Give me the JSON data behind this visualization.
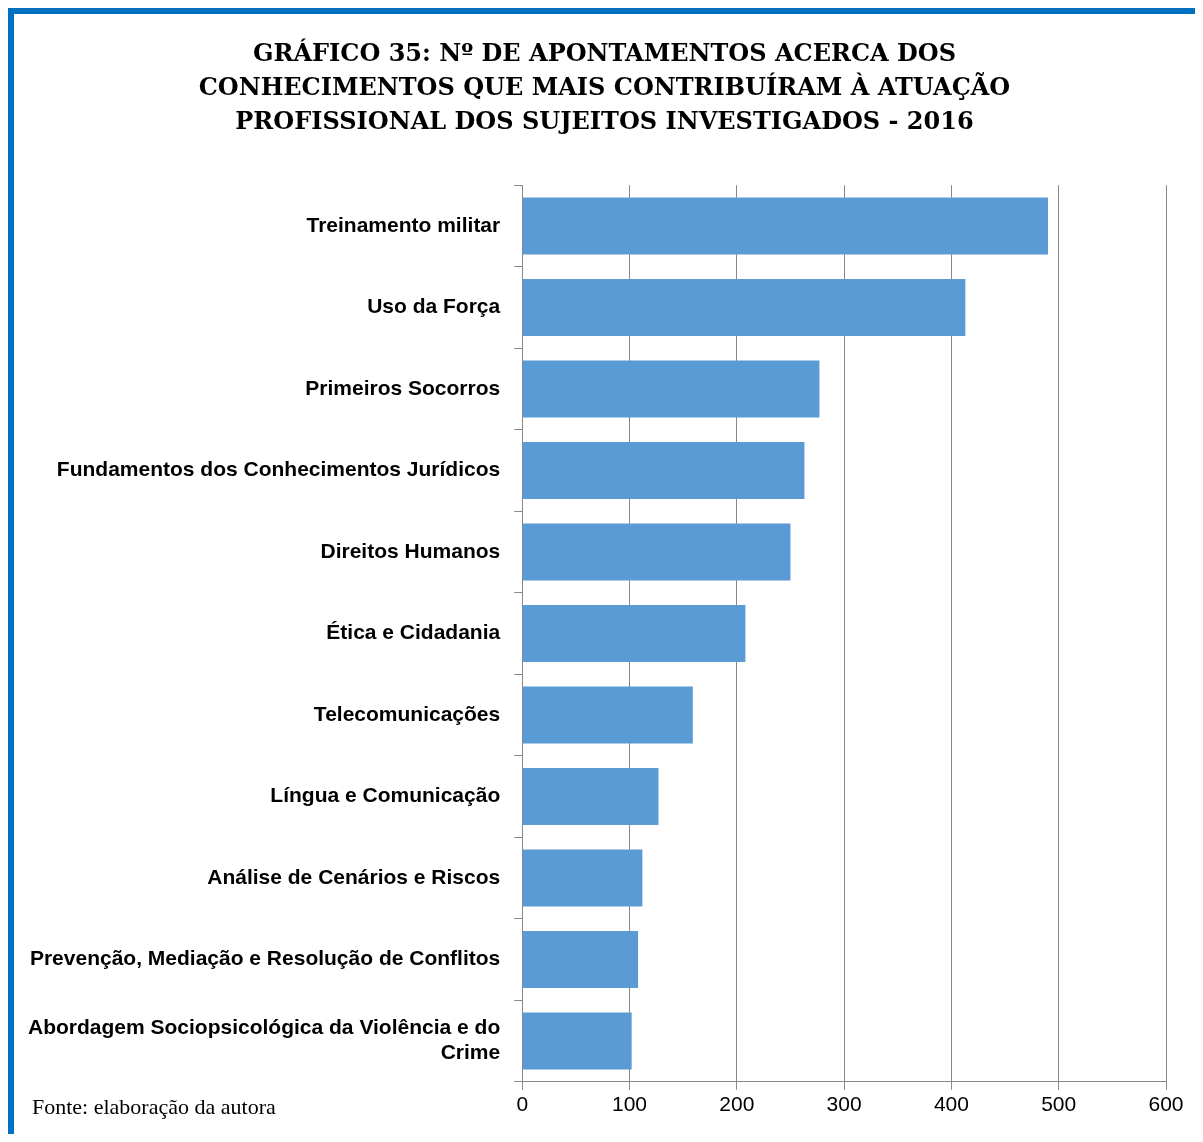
{
  "chart_data": {
    "type": "bar",
    "orientation": "horizontal",
    "title": "GRÁFICO 35: Nº DE APONTAMENTOS ACERCA DOS CONHECIMENTOS QUE MAIS CONTRIBUÍRAM À ATUAÇÃO PROFISSIONAL DOS SUJEITOS INVESTIGADOS - 2016",
    "categories": [
      "Treinamento militar",
      "Uso da Força",
      "Primeiros Socorros",
      "Fundamentos dos Conhecimentos Jurídicos",
      "Direitos Humanos",
      "Ética e Cidadania",
      "Telecomunicações",
      "Língua e Comunicação",
      "Análise de Cenários e Riscos",
      "Prevenção, Mediação e Resolução de Conflitos",
      "Abordagem Sociopsicológica da Violência e do Crime"
    ],
    "values": [
      490,
      413,
      277,
      263,
      250,
      208,
      159,
      127,
      112,
      108,
      102
    ],
    "color": "#5b9bd5",
    "xlim": [
      0,
      600
    ],
    "xticks": [
      0,
      100,
      200,
      300,
      400,
      500,
      600
    ],
    "grid": "x",
    "legend": false,
    "annotations": [
      "Fonte: elaboração da autora"
    ]
  }
}
